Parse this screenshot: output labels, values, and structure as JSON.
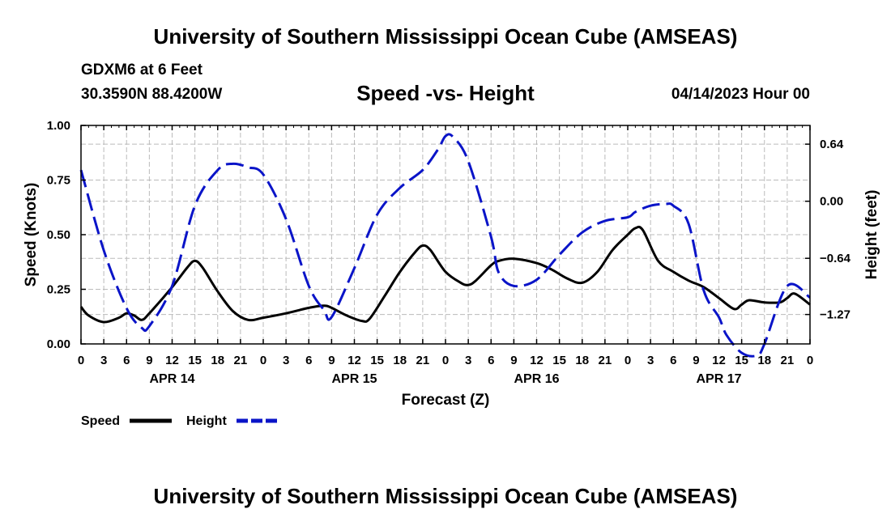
{
  "header": {
    "title": "University of Southern Mississippi Ocean Cube (AMSEAS)",
    "station": "GDXM6 at 6 Feet",
    "coords": "30.3590N  88.4200W",
    "subtitle": "Speed -vs- Height",
    "datetime": "04/14/2023 Hour 00"
  },
  "footer": {
    "title": "University of Southern Mississippi Ocean Cube (AMSEAS)"
  },
  "chart_data": {
    "type": "line",
    "xlabel": "Forecast (Z)",
    "ylabel_left": "Speed (Knots)",
    "ylabel_right": "Height (feet)",
    "xlim": [
      0,
      96
    ],
    "ylim_left": [
      0,
      1.0
    ],
    "ylim_right": [
      -1.6,
      0.85
    ],
    "grid": true,
    "x_ticks": [
      0,
      3,
      6,
      9,
      12,
      15,
      18,
      21,
      24,
      27,
      30,
      33,
      36,
      39,
      42,
      45,
      48,
      51,
      54,
      57,
      60,
      63,
      66,
      69,
      72,
      75,
      78,
      81,
      84,
      87,
      90,
      93,
      96
    ],
    "x_tick_labels": [
      "0",
      "3",
      "6",
      "9",
      "12",
      "15",
      "18",
      "21",
      "0",
      "3",
      "6",
      "9",
      "12",
      "15",
      "18",
      "21",
      "0",
      "3",
      "6",
      "9",
      "12",
      "15",
      "18",
      "21",
      "0",
      "3",
      "6",
      "9",
      "12",
      "15",
      "18",
      "21",
      "0"
    ],
    "day_labels": [
      {
        "x": 12,
        "label": "APR 14"
      },
      {
        "x": 36,
        "label": "APR 15"
      },
      {
        "x": 60,
        "label": "APR 16"
      },
      {
        "x": 84,
        "label": "APR 17"
      }
    ],
    "left_ticks": [
      0,
      0.25,
      0.5,
      0.75,
      1.0
    ],
    "left_tick_labels": [
      "0.00",
      "0.25",
      "0.50",
      "0.75",
      "1.00"
    ],
    "right_ticks": [
      0.64,
      0.0,
      -0.64,
      -1.27
    ],
    "right_tick_labels": [
      "0.64",
      "0.00",
      "−0.64",
      "−1.27"
    ],
    "legend": [
      {
        "name": "Speed",
        "color": "#000000",
        "dash": "solid"
      },
      {
        "name": "Height",
        "color": "#0a14c8",
        "dash": "dashed"
      }
    ],
    "series": [
      {
        "name": "Speed",
        "axis": "left",
        "color": "#000000",
        "x": [
          0,
          1,
          3,
          5,
          6,
          7,
          8,
          9,
          12,
          14,
          15,
          16,
          18,
          20,
          22,
          24,
          27,
          30,
          32,
          33,
          35,
          37,
          38,
          40,
          42,
          44,
          45,
          46,
          48,
          50,
          51,
          52,
          54,
          55,
          57,
          60,
          62,
          64,
          66,
          68,
          70,
          72,
          73,
          74,
          76,
          78,
          80,
          82,
          84,
          86,
          87,
          88,
          90,
          92,
          93,
          94,
          96
        ],
        "values": [
          0.17,
          0.13,
          0.1,
          0.12,
          0.14,
          0.13,
          0.11,
          0.14,
          0.26,
          0.35,
          0.38,
          0.35,
          0.24,
          0.15,
          0.11,
          0.12,
          0.14,
          0.165,
          0.175,
          0.165,
          0.13,
          0.105,
          0.115,
          0.22,
          0.33,
          0.42,
          0.45,
          0.43,
          0.33,
          0.28,
          0.27,
          0.29,
          0.36,
          0.38,
          0.39,
          0.37,
          0.34,
          0.3,
          0.28,
          0.33,
          0.43,
          0.5,
          0.53,
          0.52,
          0.38,
          0.33,
          0.29,
          0.26,
          0.21,
          0.16,
          0.18,
          0.2,
          0.19,
          0.19,
          0.21,
          0.23,
          0.18
        ]
      },
      {
        "name": "Height",
        "axis": "right",
        "color": "#0a14c8",
        "x": [
          0,
          3,
          6,
          8,
          9,
          12,
          15,
          18,
          20,
          22,
          24,
          27,
          30,
          32,
          33,
          36,
          39,
          42,
          45,
          47,
          48,
          49,
          51,
          54,
          55,
          57,
          60,
          63,
          66,
          69,
          72,
          73,
          75,
          77,
          78,
          80,
          82,
          84,
          85,
          87,
          89,
          90,
          93,
          96
        ],
        "values": [
          0.35,
          -0.55,
          -1.2,
          -1.42,
          -1.4,
          -0.95,
          -0.05,
          0.35,
          0.42,
          0.38,
          0.3,
          -0.2,
          -0.95,
          -1.22,
          -1.3,
          -0.75,
          -0.15,
          0.15,
          0.35,
          0.58,
          0.73,
          0.72,
          0.45,
          -0.4,
          -0.8,
          -0.95,
          -0.88,
          -0.6,
          -0.35,
          -0.22,
          -0.18,
          -0.12,
          -0.05,
          -0.03,
          -0.05,
          -0.25,
          -1.0,
          -1.3,
          -1.5,
          -1.7,
          -1.73,
          -1.6,
          -0.95,
          -1.08
        ]
      }
    ]
  }
}
